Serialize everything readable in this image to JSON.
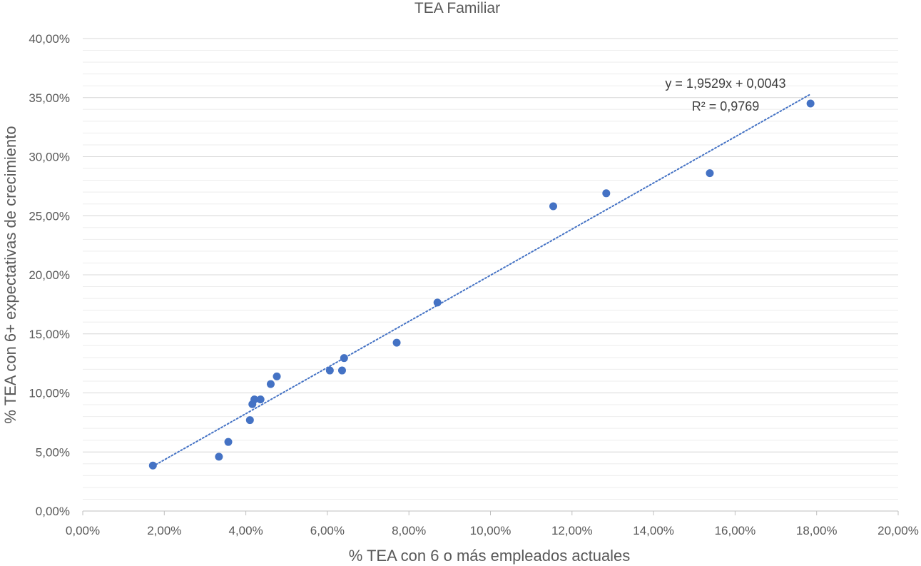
{
  "chart_data": {
    "type": "scatter",
    "title": "TEA Familiar",
    "xlabel": "% TEA con 6 o más empleados actuales",
    "ylabel": "% TEA con 6+ expectativas de crecimiento",
    "xlim": [
      0,
      0.2
    ],
    "ylim": [
      0,
      0.4
    ],
    "x_major_step": 0.02,
    "y_major_step": 0.05,
    "y_minor_step": 0.01,
    "x_tick_labels": [
      "0,00%",
      "2,00%",
      "4,00%",
      "6,00%",
      "8,00%",
      "10,00%",
      "12,00%",
      "14,00%",
      "16,00%",
      "18,00%",
      "20,00%"
    ],
    "y_tick_labels": [
      "0,00%",
      "5,00%",
      "10,00%",
      "15,00%",
      "20,00%",
      "25,00%",
      "30,00%",
      "35,00%",
      "40,00%"
    ],
    "points": [
      {
        "x": 0.0172,
        "y": 0.0385
      },
      {
        "x": 0.0334,
        "y": 0.046
      },
      {
        "x": 0.0357,
        "y": 0.0585
      },
      {
        "x": 0.041,
        "y": 0.077
      },
      {
        "x": 0.0416,
        "y": 0.0905
      },
      {
        "x": 0.0421,
        "y": 0.0945
      },
      {
        "x": 0.0436,
        "y": 0.0945
      },
      {
        "x": 0.0461,
        "y": 0.1075
      },
      {
        "x": 0.0476,
        "y": 0.114
      },
      {
        "x": 0.0606,
        "y": 0.119
      },
      {
        "x": 0.0636,
        "y": 0.119
      },
      {
        "x": 0.0641,
        "y": 0.1295
      },
      {
        "x": 0.077,
        "y": 0.1425
      },
      {
        "x": 0.087,
        "y": 0.1765
      },
      {
        "x": 0.1154,
        "y": 0.258
      },
      {
        "x": 0.1284,
        "y": 0.269
      },
      {
        "x": 0.1538,
        "y": 0.286
      },
      {
        "x": 0.1785,
        "y": 0.345
      }
    ],
    "trendline": {
      "type": "linear",
      "slope": 1.9529,
      "intercept": 0.0043,
      "x_range": [
        0.0172,
        0.1785
      ],
      "equation_label": "y = 1,9529x + 0,0043",
      "r2_label": "R² = 0,9769"
    },
    "marker_color": "#4472c4",
    "trendline_color": "#4472c4",
    "grid_major_color": "#d9d9d9",
    "grid_minor_color": "#ededed",
    "axis_color": "#bfbfbf"
  }
}
